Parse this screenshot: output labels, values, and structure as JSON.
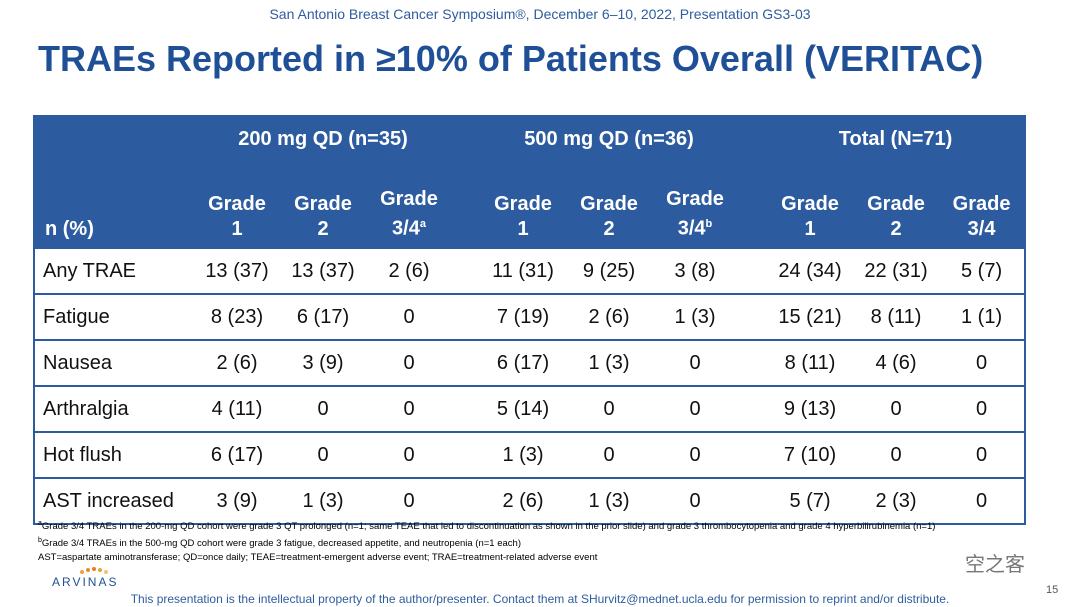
{
  "header": {
    "conference": "San Antonio Breast Cancer Symposium®, December 6–10, 2022, Presentation GS3-03",
    "title": "TRAEs Reported in ≥10% of Patients Overall (VERITAC)"
  },
  "table": {
    "row_header": "n (%)",
    "groups": [
      "200 mg QD (n=35)",
      "500 mg QD (n=36)",
      "Total (N=71)"
    ],
    "columns": [
      {
        "label": "Grade 1"
      },
      {
        "label": "Grade 2"
      },
      {
        "label": "Grade 3/4",
        "note": "a"
      },
      {
        "label": "Grade 1"
      },
      {
        "label": "Grade 2"
      },
      {
        "label": "Grade 3/4",
        "note": "b"
      },
      {
        "label": "Grade 1"
      },
      {
        "label": "Grade 2"
      },
      {
        "label": "Grade 3/4"
      }
    ],
    "rows": [
      {
        "label": "Any TRAE",
        "cells": [
          "13 (37)",
          "13 (37)",
          "2 (6)",
          "11 (31)",
          "9 (25)",
          "3 (8)",
          "24 (34)",
          "22 (31)",
          "5 (7)"
        ]
      },
      {
        "label": "Fatigue",
        "cells": [
          "8 (23)",
          "6 (17)",
          "0",
          "7 (19)",
          "2 (6)",
          "1 (3)",
          "15 (21)",
          "8 (11)",
          "1 (1)"
        ]
      },
      {
        "label": "Nausea",
        "cells": [
          "2 (6)",
          "3 (9)",
          "0",
          "6 (17)",
          "1 (3)",
          "0",
          "8 (11)",
          "4 (6)",
          "0"
        ]
      },
      {
        "label": "Arthralgia",
        "cells": [
          "4 (11)",
          "0",
          "0",
          "5 (14)",
          "0",
          "0",
          "9 (13)",
          "0",
          "0"
        ]
      },
      {
        "label": "Hot flush",
        "cells": [
          "6 (17)",
          "0",
          "0",
          "1 (3)",
          "0",
          "0",
          "7 (10)",
          "0",
          "0"
        ]
      },
      {
        "label": "AST increased",
        "cells": [
          "3 (9)",
          "1 (3)",
          "0",
          "2 (6)",
          "1 (3)",
          "0",
          "5 (7)",
          "2 (3)",
          "0"
        ]
      }
    ]
  },
  "footnotes": [
    {
      "marker": "a",
      "text": "Grade 3/4 TRAEs in the 200-mg QD cohort were grade 3 QT prolonged (n=1; same TEAE that led to discontinuation as shown in the prior slide) and grade 3 thrombocytopenia and grade 4 hyperbilirubinemia (n=1)"
    },
    {
      "marker": "b",
      "text": "Grade 3/4 TRAEs in the 500-mg QD cohort were grade 3 fatigue, decreased appetite, and neutropenia (n=1 each)"
    },
    {
      "text": "AST=aspartate aminotransferase; QD=once daily; TEAE=treatment-emergent adverse event; TRAE=treatment-related adverse event"
    }
  ],
  "footer": {
    "logo": "ARVINAS",
    "notice": "This presentation is the intellectual property of the author/presenter. Contact them at SHurvitz@mednet.ucla.edu for permission to reprint and/or distribute.",
    "page": "15",
    "watermark": "空之客"
  }
}
